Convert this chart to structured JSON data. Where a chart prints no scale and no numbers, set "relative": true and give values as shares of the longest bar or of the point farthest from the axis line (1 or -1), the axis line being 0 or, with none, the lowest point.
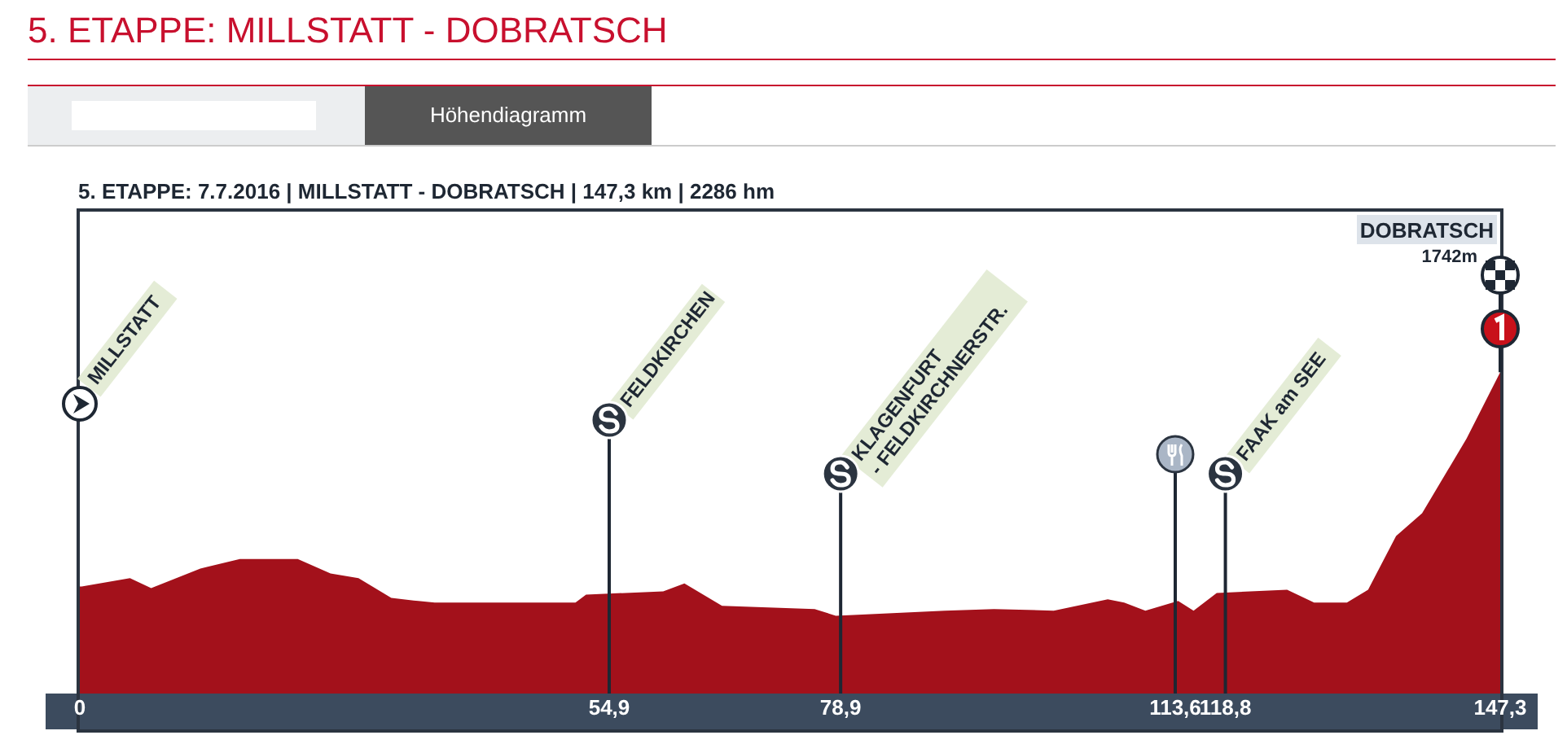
{
  "chart_data": {
    "type": "area",
    "title": "5. ETAPPE: MILLSTATT - DOBRATSCH",
    "subtitle": "5. ETAPPE: 7.7.2016 | MILLSTATT - DOBRATSCH | 147,3 km | 2286 hm",
    "relative": true,
    "x": [
      0,
      0.2,
      5.2,
      7.4,
      12.5,
      16.6,
      22.6,
      26.0,
      28.9,
      32.3,
      35.1,
      36.8,
      51.4,
      52.5,
      60.5,
      62.7,
      66.6,
      76.2,
      78.4,
      89.7,
      94.8,
      101.0,
      106.6,
      108.3,
      110.5,
      113.9,
      115.5,
      117.9,
      125.2,
      128.0,
      131.4,
      133.6,
      136.5,
      139.2,
      143.8,
      147.3
    ],
    "series": [
      {
        "color": "#a3111b",
        "values": [
          0.333,
          0.333,
          0.359,
          0.328,
          0.389,
          0.419,
          0.419,
          0.374,
          0.359,
          0.298,
          0.288,
          0.283,
          0.283,
          0.308,
          0.318,
          0.343,
          0.273,
          0.263,
          0.242,
          0.258,
          0.263,
          0.258,
          0.293,
          0.283,
          0.258,
          0.288,
          0.258,
          0.313,
          0.323,
          0.283,
          0.283,
          0.323,
          0.49,
          0.561,
          0.793,
          1
        ]
      }
    ],
    "xlim": [
      0,
      147.3
    ],
    "xticks": [
      0,
      {
        "value": 54.9,
        "label": "54,9"
      },
      {
        "value": 78.9,
        "label": "78,9"
      },
      {
        "value": 113.6,
        "label": "113,6"
      },
      {
        "value": 118.8,
        "label": "118,8"
      },
      {
        "value": 147.3,
        "label": "147,3"
      }
    ],
    "ref_lines": [
      {
        "axis": "x",
        "value": 54.9,
        "label": "FELDKIRCHEN"
      },
      {
        "axis": "x",
        "value": 78.9,
        "label": "KLAGENFURT\n- FELDKIRCHNERSTR."
      },
      {
        "axis": "x",
        "value": 113.6
      },
      {
        "axis": "x",
        "value": 118.8,
        "label": "FAAK am SEE"
      }
    ],
    "annotations": [
      "Höhendiagramm",
      "MILLSTATT",
      "DOBRATSCH",
      "1742m"
    ],
    "grid": false,
    "legend": false
  }
}
